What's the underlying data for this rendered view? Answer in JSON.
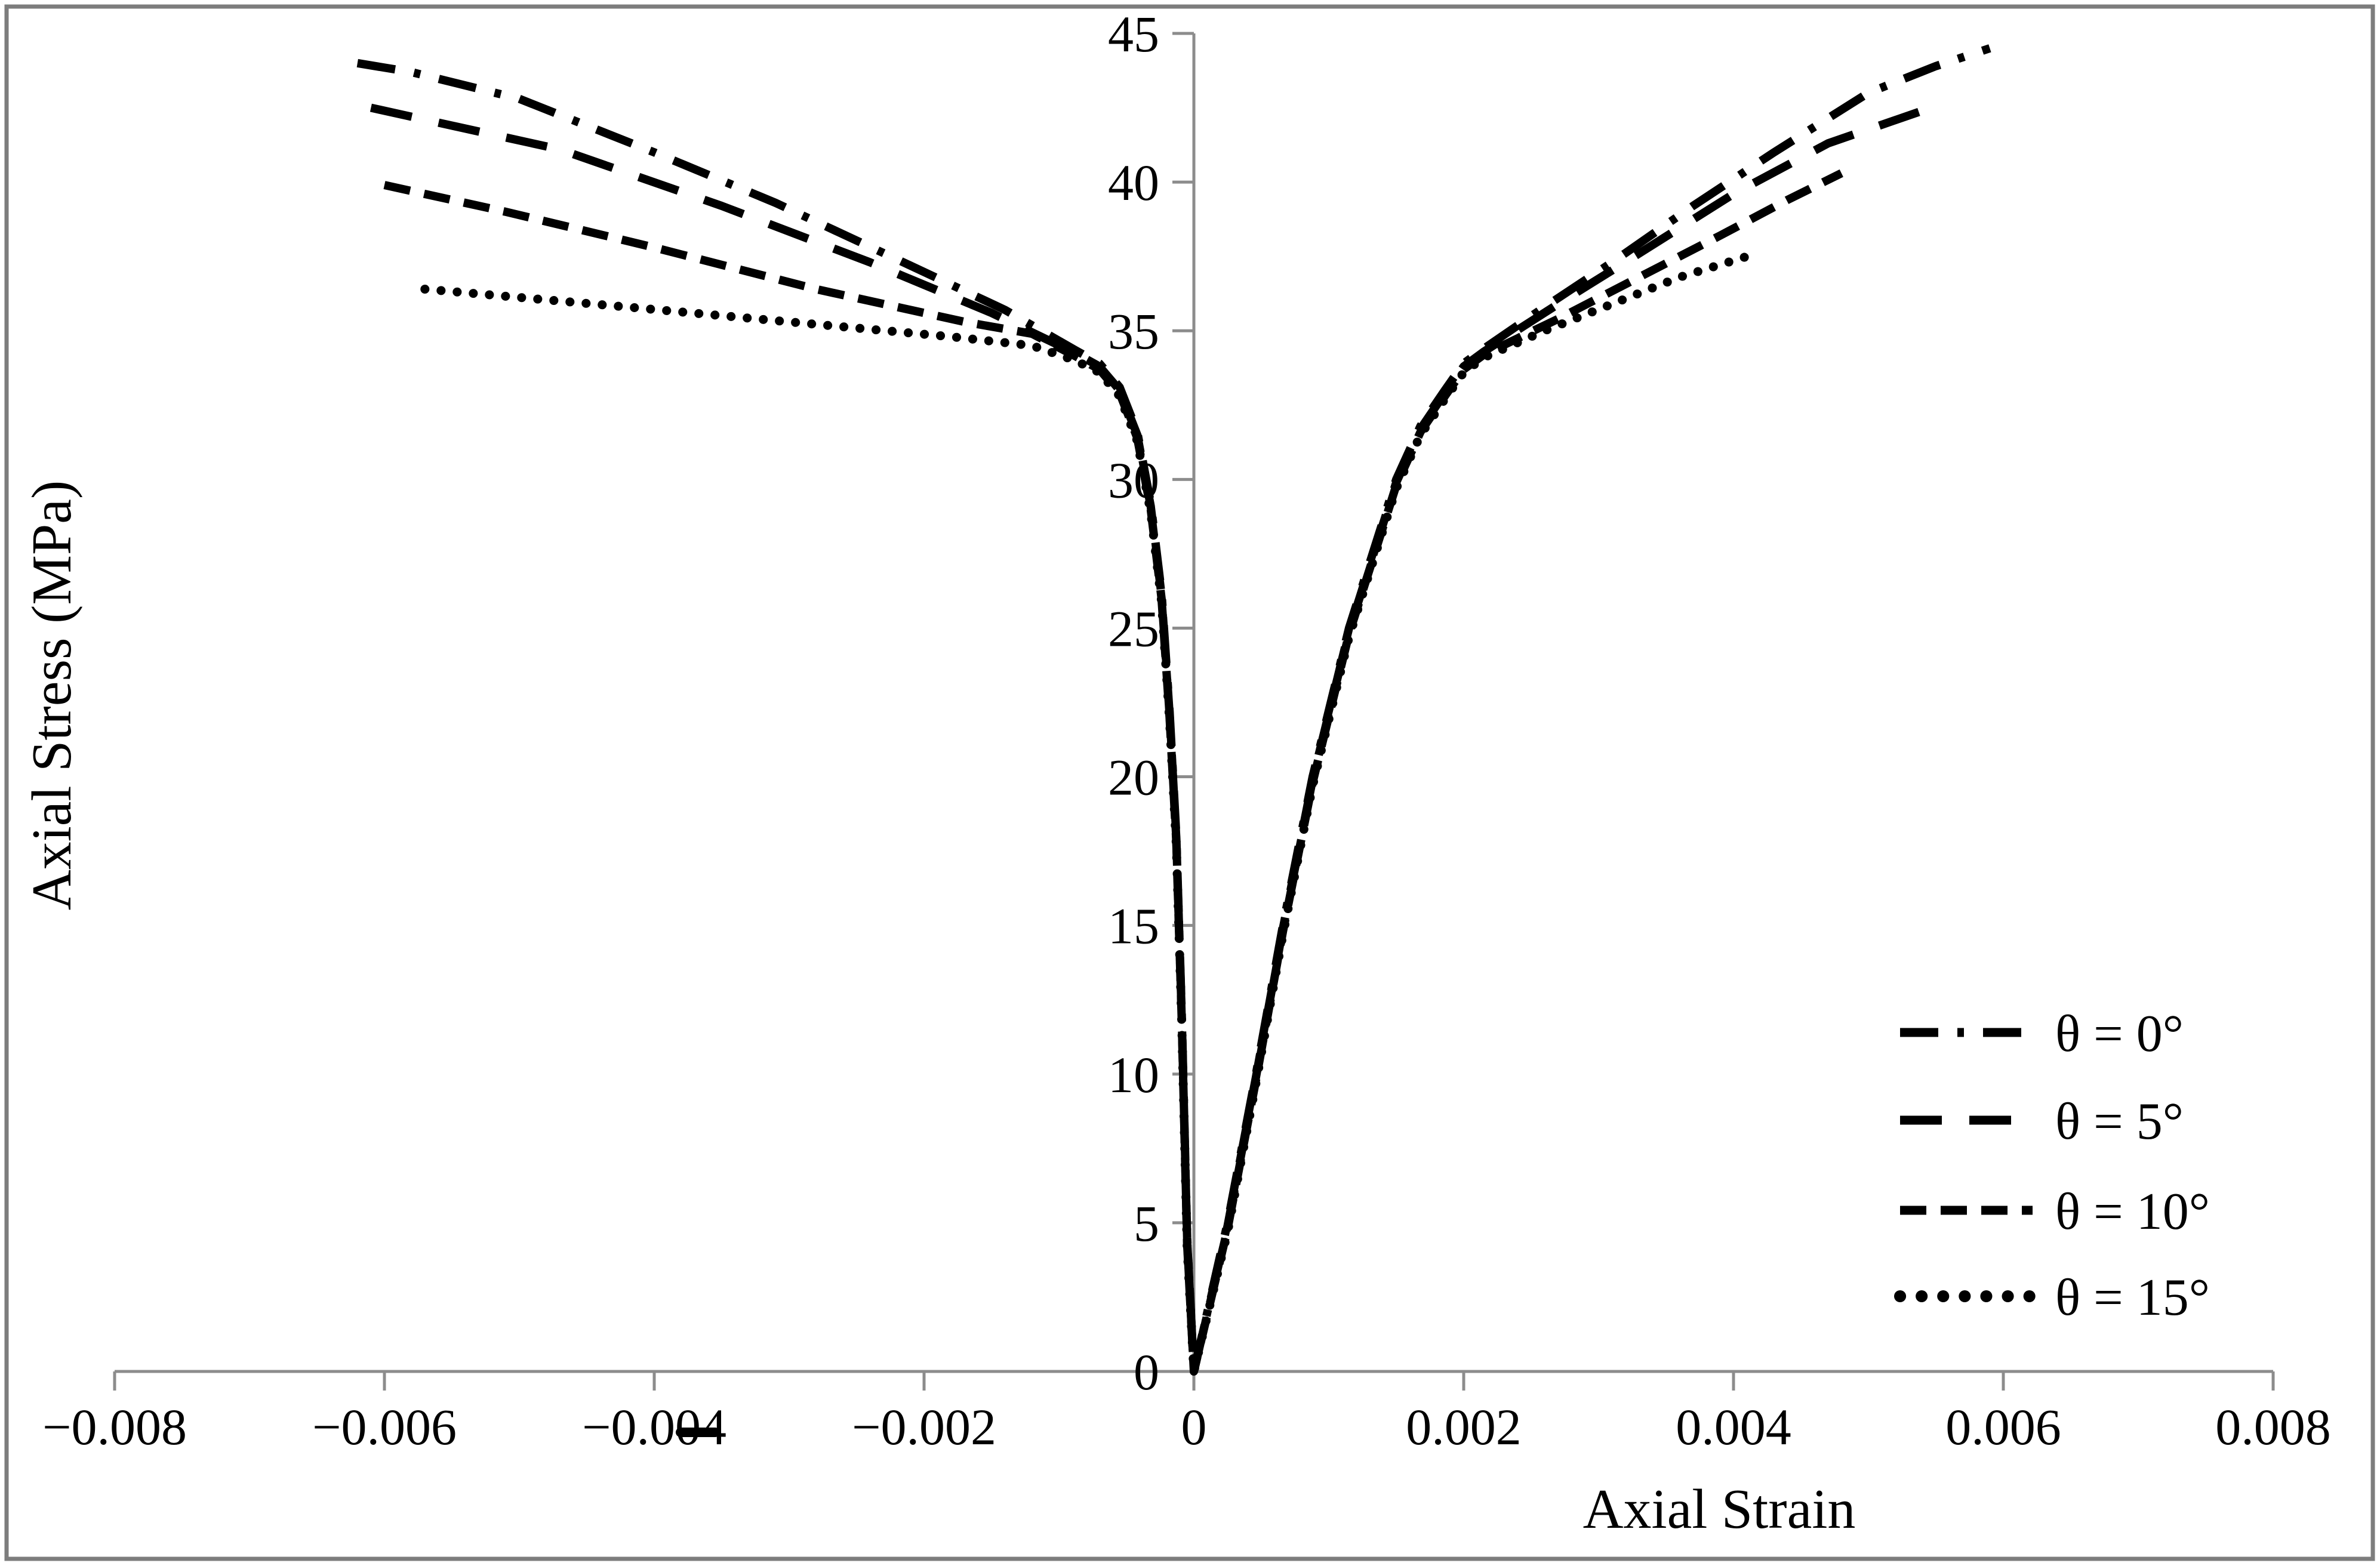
{
  "figure": {
    "background_color": "#ffffff",
    "frame_color": "#7d7d7d",
    "axis_color": "#8c8c8c",
    "curve_color": "#000000",
    "text_color": "#000000"
  },
  "chart_data": {
    "type": "line",
    "title": "",
    "xlabel": "Axial Strain",
    "ylabel": "Axial Stress (MPa)",
    "xlim": [
      -0.008,
      0.008
    ],
    "ylim": [
      0,
      45
    ],
    "grid": false,
    "legend_position": "inside lower right",
    "xticks": [
      {
        "value": -0.008,
        "label": "−0.008"
      },
      {
        "value": -0.006,
        "label": "−0.006"
      },
      {
        "value": -0.004,
        "label": "−0.004"
      },
      {
        "value": -0.002,
        "label": "−0.002"
      },
      {
        "value": 0,
        "label": "0"
      },
      {
        "value": 0.002,
        "label": "0.002"
      },
      {
        "value": 0.004,
        "label": "0.004"
      },
      {
        "value": 0.006,
        "label": "0.006"
      },
      {
        "value": 0.008,
        "label": "0.008"
      }
    ],
    "yticks": [
      {
        "value": 0,
        "label": "0"
      },
      {
        "value": 5,
        "label": "5"
      },
      {
        "value": 10,
        "label": "10"
      },
      {
        "value": 15,
        "label": "15"
      },
      {
        "value": 20,
        "label": "20"
      },
      {
        "value": 25,
        "label": "25"
      },
      {
        "value": 30,
        "label": "30"
      },
      {
        "value": 35,
        "label": "35"
      },
      {
        "value": 40,
        "label": "40"
      },
      {
        "value": 45,
        "label": "45"
      }
    ],
    "series": [
      {
        "name": "θ = 0°",
        "style": "dashdot",
        "description": "lateral strain branch (left, negative) and axial strain branch (right, positive)",
        "points": [
          [
            -0.0062,
            44.0
          ],
          [
            -0.0058,
            43.7
          ],
          [
            -0.005,
            42.8
          ],
          [
            -0.004,
            41.0
          ],
          [
            -0.0031,
            39.3
          ],
          [
            -0.0022,
            37.4
          ],
          [
            -0.0014,
            35.7
          ],
          [
            -0.00088,
            34.35
          ],
          [
            -0.0007,
            33.9
          ],
          [
            -0.00055,
            33.1
          ],
          [
            -0.00042,
            31.6
          ],
          [
            -0.00032,
            29.2
          ],
          [
            -0.00024,
            26.2
          ],
          [
            -0.00018,
            22.2
          ],
          [
            -0.00013,
            18.0
          ],
          [
            -9e-05,
            12.0
          ],
          [
            -5e-05,
            4.5
          ],
          [
            0,
            0
          ],
          [
            0.00025,
            5
          ],
          [
            0.00046,
            10
          ],
          [
            0.00066,
            15
          ],
          [
            0.00088,
            20
          ],
          [
            0.00115,
            25
          ],
          [
            0.0015,
            30
          ],
          [
            0.00168,
            31.8
          ],
          [
            0.00186,
            33
          ],
          [
            0.002,
            33.9
          ],
          [
            0.00215,
            34.4
          ],
          [
            0.0026,
            35.8
          ],
          [
            0.0031,
            37.3
          ],
          [
            0.0037,
            39.2
          ],
          [
            0.0043,
            41.0
          ],
          [
            0.005,
            43.0
          ],
          [
            0.0055,
            43.9
          ],
          [
            0.0059,
            44.5
          ]
        ]
      },
      {
        "name": "θ = 5°",
        "style": "longdash",
        "description": "lateral strain branch (left, negative) and axial strain branch (right, positive)",
        "points": [
          [
            -0.0061,
            42.5
          ],
          [
            -0.0057,
            42.1
          ],
          [
            -0.0047,
            41.1
          ],
          [
            -0.0035,
            39.2
          ],
          [
            -0.0024,
            37.3
          ],
          [
            -0.0015,
            35.6
          ],
          [
            -0.00088,
            34.25
          ],
          [
            -0.0007,
            33.8
          ],
          [
            -0.00055,
            33.0
          ],
          [
            -0.00042,
            31.5
          ],
          [
            -0.00032,
            29.1
          ],
          [
            -0.00024,
            26.1
          ],
          [
            -0.00018,
            22.1
          ],
          [
            -0.00013,
            17.9
          ],
          [
            -9e-05,
            11.9
          ],
          [
            -5e-05,
            4.4
          ],
          [
            0,
            0
          ],
          [
            0.00025,
            4.9
          ],
          [
            0.00046,
            9.9
          ],
          [
            0.00066,
            14.9
          ],
          [
            0.00088,
            19.9
          ],
          [
            0.00115,
            24.9
          ],
          [
            0.0015,
            29.9
          ],
          [
            0.00168,
            31.7
          ],
          [
            0.00186,
            32.9
          ],
          [
            0.002,
            33.8
          ],
          [
            0.00215,
            34.3
          ],
          [
            0.0027,
            35.9
          ],
          [
            0.0033,
            37.6
          ],
          [
            0.004,
            39.6
          ],
          [
            0.0047,
            41.3
          ],
          [
            0.0054,
            42.4
          ]
        ]
      },
      {
        "name": "θ = 10°",
        "style": "shortdash",
        "description": "lateral strain branch (left, negative) and axial strain branch (right, positive)",
        "points": [
          [
            -0.006,
            39.9
          ],
          [
            -0.0051,
            39.0
          ],
          [
            -0.004,
            37.8
          ],
          [
            -0.0028,
            36.4
          ],
          [
            -0.0017,
            35.3
          ],
          [
            -0.0012,
            34.9
          ],
          [
            -0.00088,
            34.15
          ],
          [
            -0.0007,
            33.7
          ],
          [
            -0.00055,
            32.9
          ],
          [
            -0.00042,
            31.4
          ],
          [
            -0.00032,
            29.0
          ],
          [
            -0.00024,
            26.0
          ],
          [
            -0.00018,
            22.0
          ],
          [
            -0.00013,
            17.8
          ],
          [
            -9e-05,
            11.8
          ],
          [
            -5e-05,
            4.3
          ],
          [
            0,
            0
          ],
          [
            0.00025,
            4.8
          ],
          [
            0.00046,
            9.8
          ],
          [
            0.00066,
            14.8
          ],
          [
            0.00088,
            19.8
          ],
          [
            0.00115,
            24.8
          ],
          [
            0.0015,
            29.8
          ],
          [
            0.00168,
            31.6
          ],
          [
            0.00186,
            32.8
          ],
          [
            0.002,
            33.7
          ],
          [
            0.00215,
            34.2
          ],
          [
            0.0027,
            35.4
          ],
          [
            0.0033,
            36.8
          ],
          [
            0.0039,
            38.2
          ],
          [
            0.0044,
            39.4
          ],
          [
            0.0048,
            40.3
          ]
        ]
      },
      {
        "name": "θ = 15°",
        "style": "dotted",
        "description": "lateral strain branch (left, negative) and axial strain branch (right, positive)",
        "points": [
          [
            -0.0057,
            36.4
          ],
          [
            -0.0052,
            36.2
          ],
          [
            -0.0042,
            35.8
          ],
          [
            -0.003,
            35.3
          ],
          [
            -0.0018,
            34.8
          ],
          [
            -0.0012,
            34.5
          ],
          [
            -0.00088,
            34.0
          ],
          [
            -0.0007,
            33.6
          ],
          [
            -0.00055,
            32.8
          ],
          [
            -0.00042,
            31.3
          ],
          [
            -0.00032,
            28.9
          ],
          [
            -0.00024,
            25.9
          ],
          [
            -0.00018,
            21.9
          ],
          [
            -0.00013,
            17.7
          ],
          [
            -9e-05,
            11.7
          ],
          [
            -5e-05,
            4.2
          ],
          [
            0,
            0
          ],
          [
            0.00025,
            4.7
          ],
          [
            0.00046,
            9.7
          ],
          [
            0.00066,
            14.7
          ],
          [
            0.00088,
            19.7
          ],
          [
            0.00115,
            24.7
          ],
          [
            0.0015,
            29.7
          ],
          [
            0.00168,
            31.5
          ],
          [
            0.00186,
            32.7
          ],
          [
            0.002,
            33.6
          ],
          [
            0.00215,
            34.1
          ],
          [
            0.0026,
            35.0
          ],
          [
            0.0031,
            35.9
          ],
          [
            0.0036,
            36.8
          ],
          [
            0.0041,
            37.5
          ]
        ]
      }
    ],
    "annotations": [
      {
        "id": "stray-dash",
        "text": "",
        "note": "short black dash artifact overlapping the −0.004 tick label"
      }
    ]
  }
}
